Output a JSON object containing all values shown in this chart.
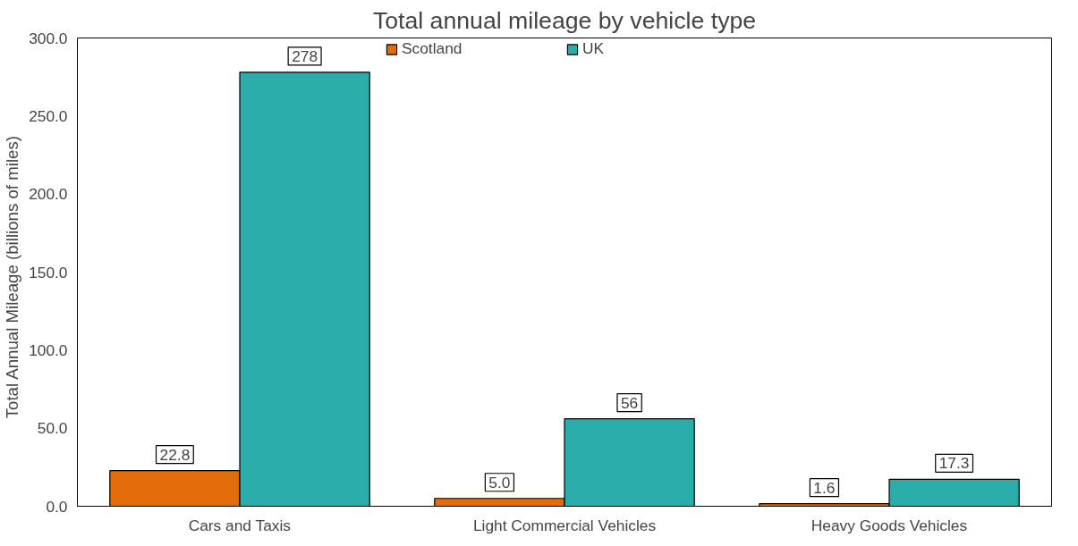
{
  "chart_data": {
    "type": "bar",
    "title": "Total annual mileage by vehicle type",
    "ylabel": "Total Annual  Mileage (billions  of miles)",
    "categories": [
      "Cars and Taxis",
      "Light Commercial Vehicles",
      "Heavy Goods Vehicles"
    ],
    "series": [
      {
        "name": "Scotland",
        "color": "#e36c0a",
        "values": [
          22.8,
          5.0,
          1.6
        ],
        "value_labels": [
          "22.8",
          "5.0",
          "1.6"
        ]
      },
      {
        "name": "UK",
        "color": "#2aaca8",
        "values": [
          278,
          56,
          17.3
        ],
        "value_labels": [
          "278",
          "56",
          "17.3"
        ]
      }
    ],
    "ylim": [
      0,
      300
    ],
    "yticks": [
      {
        "value": 0,
        "label": "0.0"
      },
      {
        "value": 50,
        "label": "50.0"
      },
      {
        "value": 100,
        "label": "100.0"
      },
      {
        "value": 150,
        "label": "150.0"
      },
      {
        "value": 200,
        "label": "200.0"
      },
      {
        "value": 250,
        "label": "250.0"
      },
      {
        "value": 300,
        "label": "300.0"
      }
    ],
    "legend": "top"
  }
}
